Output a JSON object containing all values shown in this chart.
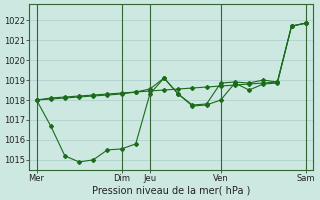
{
  "bg_color": "#cce8e0",
  "grid_color": "#aacccc",
  "line_color": "#1a6b1a",
  "xlabel": "Pression niveau de la mer( hPa )",
  "ylim": [
    1014.5,
    1022.8
  ],
  "yticks": [
    1015,
    1016,
    1017,
    1018,
    1019,
    1020,
    1021,
    1022
  ],
  "xtick_labels": [
    "Mer",
    "Dim",
    "Jeu",
    "Ven",
    "Sam"
  ],
  "xtick_positions": [
    0,
    6,
    8,
    13,
    19
  ],
  "vlines": [
    0,
    6,
    8,
    13,
    19
  ],
  "series1_x": [
    0,
    1,
    2,
    3,
    4,
    5,
    6,
    7,
    8,
    9,
    10,
    11,
    12,
    13,
    14,
    15,
    16,
    17,
    18,
    19
  ],
  "series1_y": [
    1018.0,
    1018.1,
    1018.15,
    1018.2,
    1018.25,
    1018.3,
    1018.35,
    1018.4,
    1018.45,
    1018.5,
    1018.55,
    1018.6,
    1018.65,
    1018.7,
    1018.75,
    1018.8,
    1018.85,
    1018.9,
    1021.7,
    1021.85
  ],
  "series2_x": [
    0,
    1,
    2,
    3,
    4,
    5,
    6,
    7,
    8,
    9,
    10,
    11,
    12,
    13,
    14,
    15,
    16,
    17,
    18,
    19
  ],
  "series2_y": [
    1018.0,
    1016.7,
    1015.2,
    1014.9,
    1015.0,
    1015.5,
    1015.55,
    1015.8,
    1018.3,
    1019.1,
    1018.3,
    1017.7,
    1017.75,
    1018.0,
    1018.85,
    1018.5,
    1018.8,
    1018.85,
    1021.7,
    1021.85
  ],
  "series3_x": [
    0,
    1,
    2,
    3,
    4,
    5,
    6,
    7,
    8,
    9,
    10,
    11,
    12,
    13,
    14,
    15,
    16,
    17,
    18,
    19
  ],
  "series3_y": [
    1018.0,
    1018.05,
    1018.1,
    1018.15,
    1018.2,
    1018.25,
    1018.3,
    1018.4,
    1018.55,
    1019.1,
    1018.3,
    1017.75,
    1017.8,
    1018.85,
    1018.9,
    1018.85,
    1019.0,
    1018.9,
    1021.7,
    1021.85
  ],
  "xlabel_fontsize": 7,
  "tick_fontsize": 6
}
